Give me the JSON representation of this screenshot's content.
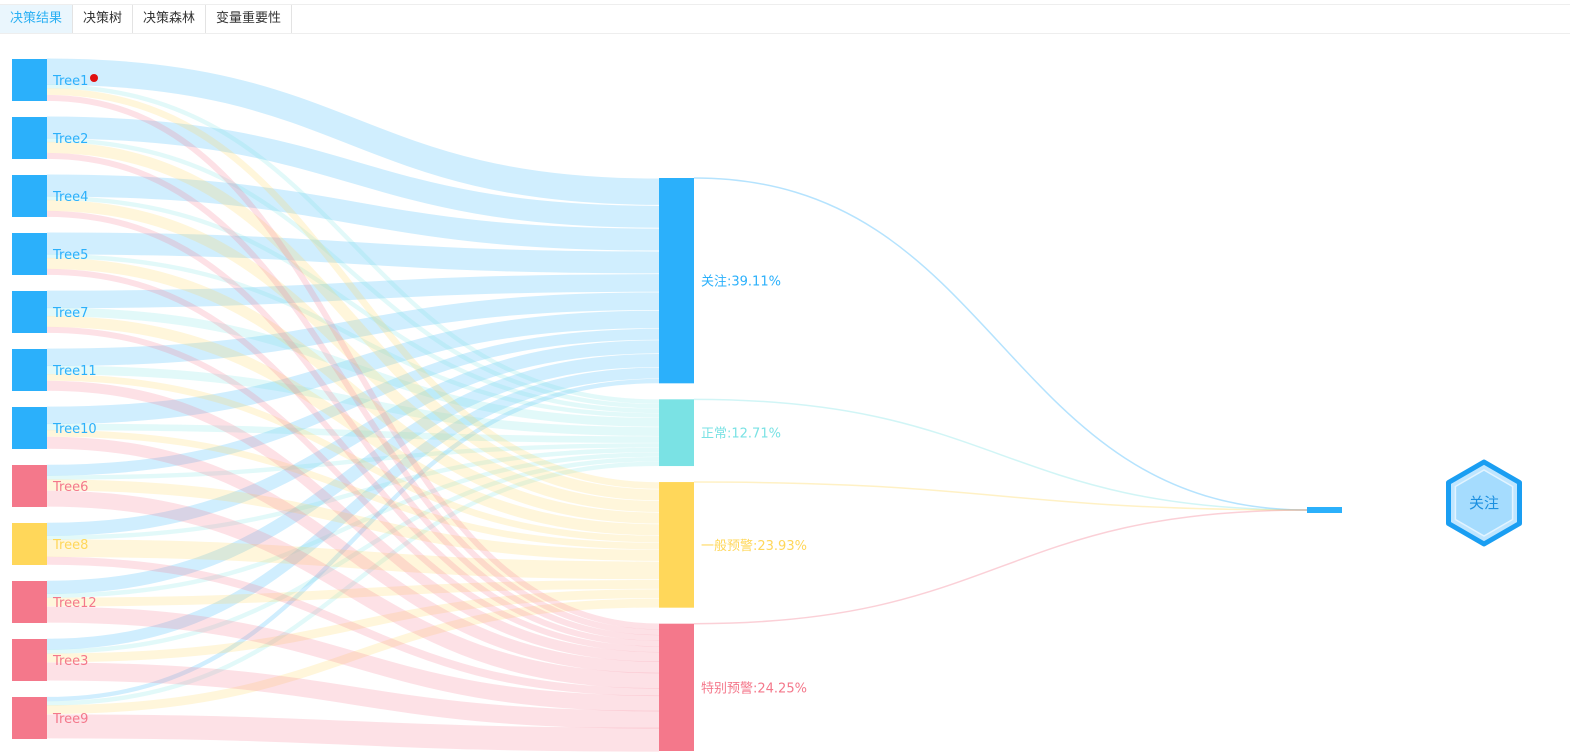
{
  "tabs": [
    {
      "label": "决策结果",
      "active": true
    },
    {
      "label": "决策树",
      "active": false
    },
    {
      "label": "决策森林",
      "active": false
    },
    {
      "label": "变量重要性",
      "active": false
    }
  ],
  "colors": {
    "关注": "#2bb0fb",
    "正常": "#7ae2e4",
    "一般预警": "#ffd75a",
    "特别预警": "#f4788b",
    "marker": "#e01010"
  },
  "chart_data": {
    "type": "sankey",
    "trees": [
      {
        "name": "Tree1",
        "result": "关注"
      },
      {
        "name": "Tree2",
        "result": "关注"
      },
      {
        "name": "Tree4",
        "result": "关注"
      },
      {
        "name": "Tree5",
        "result": "关注"
      },
      {
        "name": "Tree7",
        "result": "关注"
      },
      {
        "name": "Tree11",
        "result": "关注"
      },
      {
        "name": "Tree10",
        "result": "关注"
      },
      {
        "name": "Tree6",
        "result": "特别预警"
      },
      {
        "name": "Tree8",
        "result": "一般预警"
      },
      {
        "name": "Tree12",
        "result": "特别预警"
      },
      {
        "name": "Tree3",
        "result": "特别预警"
      },
      {
        "name": "Tree9",
        "result": "特别预警"
      }
    ],
    "outcomes": [
      {
        "key": "关注",
        "label": "关注:39.11%",
        "percent": 39.11
      },
      {
        "key": "正常",
        "label": "正常:12.71%",
        "percent": 12.71
      },
      {
        "key": "一般预警",
        "label": "一般预警:23.93%",
        "percent": 23.93
      },
      {
        "key": "特别预警",
        "label": "特别预警:24.25%",
        "percent": 24.25
      }
    ],
    "flow_shares": [
      [
        0.6,
        0.1,
        0.15,
        0.15
      ],
      [
        0.5,
        0.1,
        0.25,
        0.15
      ],
      [
        0.5,
        0.1,
        0.25,
        0.15
      ],
      [
        0.5,
        0.1,
        0.25,
        0.15
      ],
      [
        0.4,
        0.2,
        0.25,
        0.15
      ],
      [
        0.4,
        0.2,
        0.15,
        0.25
      ],
      [
        0.4,
        0.15,
        0.15,
        0.3
      ],
      [
        0.25,
        0.1,
        0.25,
        0.4
      ],
      [
        0.3,
        0.1,
        0.4,
        0.2
      ],
      [
        0.3,
        0.1,
        0.2,
        0.4
      ],
      [
        0.25,
        0.1,
        0.2,
        0.45
      ],
      [
        0.1,
        0.1,
        0.2,
        0.6
      ]
    ],
    "final": {
      "result": "关注",
      "label": "关注"
    },
    "marked_tree": "Tree1"
  }
}
